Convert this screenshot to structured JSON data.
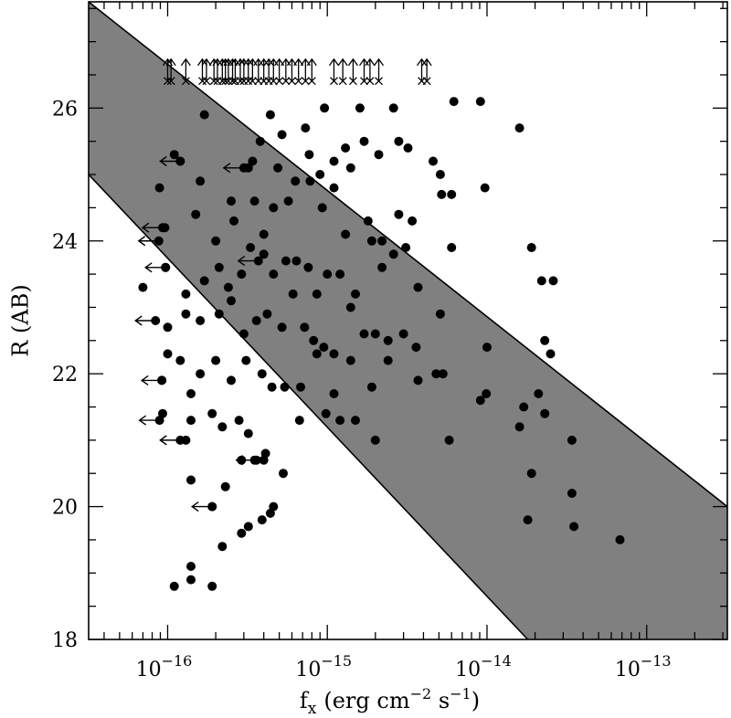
{
  "chart_data": {
    "type": "scatter",
    "title": "",
    "xlabel_main": "f",
    "xlabel_sub": "x",
    "xlabel_unit": "(erg cm",
    "xlabel_exp1": "−2",
    "xlabel_mid": " s",
    "xlabel_exp2": "−1",
    "xlabel_close": ")",
    "ylabel": "R (AB)",
    "xscale": "log",
    "xlim": [
      3.2e-17,
      3.2e-13
    ],
    "ylim": [
      18,
      27.6
    ],
    "x_ticks": [
      {
        "value": 1e-16,
        "base": "10",
        "exp": "−16"
      },
      {
        "value": 1e-15,
        "base": "10",
        "exp": "−15"
      },
      {
        "value": 1e-14,
        "base": "10",
        "exp": "−14"
      },
      {
        "value": 1e-13,
        "base": "10",
        "exp": "−13"
      }
    ],
    "y_ticks": [
      {
        "value": 18,
        "label": "18"
      },
      {
        "value": 20,
        "label": "20"
      },
      {
        "value": 22,
        "label": "22"
      },
      {
        "value": 24,
        "label": "24"
      },
      {
        "value": 26,
        "label": "26"
      }
    ],
    "band": {
      "upper_line": [
        [
          3.2e-17,
          27.6
        ],
        [
          3.2e-13,
          20.0
        ]
      ],
      "lower_line": [
        [
          3.2e-17,
          25.0
        ],
        [
          1.8e-14,
          18.0
        ]
      ],
      "fill_color": "#808080"
    },
    "detections": {
      "name": "",
      "marker": "filled-circle",
      "points": [
        [
          8.9e-17,
          24.8
        ],
        [
          1.7e-16,
          25.9
        ],
        [
          3.4e-16,
          25.2
        ],
        [
          4.4e-16,
          25.9
        ],
        [
          5.2e-16,
          25.6
        ],
        [
          7.3e-16,
          25.7
        ],
        [
          9.6e-16,
          26.0
        ],
        [
          1.3e-15,
          25.4
        ],
        [
          1.6e-15,
          26.0
        ],
        [
          2.6e-15,
          26.0
        ],
        [
          6.2e-15,
          26.1
        ],
        [
          9.1e-15,
          26.1
        ],
        [
          1.6e-14,
          25.7
        ],
        [
          1.1e-16,
          25.3
        ],
        [
          1.2e-16,
          25.2
        ],
        [
          1.6e-16,
          24.9
        ],
        [
          2.5e-16,
          24.6
        ],
        [
          3.2e-16,
          25.1
        ],
        [
          3.8e-16,
          25.5
        ],
        [
          4.9e-16,
          25.1
        ],
        [
          6.3e-16,
          24.9
        ],
        [
          7.7e-16,
          25.3
        ],
        [
          9e-16,
          25.0
        ],
        [
          1.1e-15,
          25.2
        ],
        [
          1.4e-15,
          25.1
        ],
        [
          1.7e-15,
          25.5
        ],
        [
          2.1e-15,
          25.3
        ],
        [
          2.8e-15,
          25.5
        ],
        [
          3.2e-15,
          25.4
        ],
        [
          4.6e-15,
          25.2
        ],
        [
          5.1e-15,
          25.0
        ],
        [
          9.7e-15,
          24.8
        ],
        [
          9.6e-17,
          24.2
        ],
        [
          1.5e-16,
          24.4
        ],
        [
          2e-16,
          24.0
        ],
        [
          2.6e-16,
          24.3
        ],
        [
          3.5e-16,
          24.6
        ],
        [
          4e-16,
          24.1
        ],
        [
          4.6e-16,
          24.5
        ],
        [
          5.7e-16,
          24.6
        ],
        [
          7.8e-16,
          24.9
        ],
        [
          9.3e-16,
          24.5
        ],
        [
          1.1e-15,
          24.8
        ],
        [
          1.3e-15,
          24.1
        ],
        [
          1.8e-15,
          24.3
        ],
        [
          2.2e-15,
          24.0
        ],
        [
          2.8e-15,
          24.4
        ],
        [
          3.4e-15,
          24.3
        ],
        [
          5.2e-15,
          24.7
        ],
        [
          6e-15,
          24.7
        ],
        [
          9.7e-17,
          23.6
        ],
        [
          1.3e-16,
          23.2
        ],
        [
          1.7e-16,
          23.4
        ],
        [
          2.1e-16,
          23.6
        ],
        [
          2.4e-16,
          23.3
        ],
        [
          2.9e-16,
          23.5
        ],
        [
          3.3e-16,
          23.9
        ],
        [
          4e-16,
          23.8
        ],
        [
          4.6e-16,
          23.5
        ],
        [
          5.5e-16,
          23.7
        ],
        [
          6.4e-16,
          23.7
        ],
        [
          7.6e-16,
          23.6
        ],
        [
          8.6e-16,
          23.2
        ],
        [
          1e-15,
          23.5
        ],
        [
          1.2e-15,
          23.5
        ],
        [
          1.5e-15,
          23.2
        ],
        [
          1.9e-15,
          24.0
        ],
        [
          2.2e-15,
          23.6
        ],
        [
          2.6e-15,
          23.8
        ],
        [
          3.1e-15,
          23.9
        ],
        [
          3.7e-15,
          23.3
        ],
        [
          6e-15,
          23.9
        ],
        [
          1.9e-14,
          23.9
        ],
        [
          2.2e-14,
          23.4
        ],
        [
          2.6e-14,
          23.4
        ],
        [
          7e-17,
          23.3
        ],
        [
          1e-16,
          22.7
        ],
        [
          1.3e-16,
          22.9
        ],
        [
          1.6e-16,
          22.8
        ],
        [
          2.1e-16,
          22.9
        ],
        [
          2.5e-16,
          23.1
        ],
        [
          3e-16,
          22.6
        ],
        [
          3.6e-16,
          22.8
        ],
        [
          4.2e-16,
          22.9
        ],
        [
          5.2e-16,
          22.7
        ],
        [
          6.1e-16,
          23.2
        ],
        [
          7.2e-16,
          22.7
        ],
        [
          8.2e-16,
          22.5
        ],
        [
          9.5e-16,
          22.4
        ],
        [
          1.1e-15,
          22.3
        ],
        [
          1.4e-15,
          23.0
        ],
        [
          1.7e-15,
          22.6
        ],
        [
          2e-15,
          22.6
        ],
        [
          2.4e-15,
          22.5
        ],
        [
          3e-15,
          22.6
        ],
        [
          3.6e-15,
          22.4
        ],
        [
          5.1e-15,
          22.9
        ],
        [
          1e-14,
          22.4
        ],
        [
          2.3e-14,
          22.5
        ],
        [
          2.5e-14,
          22.3
        ],
        [
          9.2e-17,
          21.9
        ],
        [
          1e-16,
          22.3
        ],
        [
          1.2e-16,
          22.2
        ],
        [
          1.4e-16,
          21.7
        ],
        [
          1.6e-16,
          22.0
        ],
        [
          2e-16,
          22.2
        ],
        [
          2.5e-16,
          21.9
        ],
        [
          3.1e-16,
          22.2
        ],
        [
          3.9e-16,
          22.0
        ],
        [
          4.5e-16,
          21.8
        ],
        [
          5.4e-16,
          21.8
        ],
        [
          6.8e-16,
          21.8
        ],
        [
          8.6e-16,
          22.3
        ],
        [
          1.1e-15,
          21.7
        ],
        [
          1.4e-15,
          22.2
        ],
        [
          1.9e-15,
          21.8
        ],
        [
          2.4e-15,
          22.2
        ],
        [
          3.7e-15,
          21.9
        ],
        [
          4.8e-15,
          22.0
        ],
        [
          5.3e-15,
          22.0
        ],
        [
          9.1e-15,
          21.6
        ],
        [
          9.9e-15,
          21.7
        ],
        [
          1.7e-14,
          21.5
        ],
        [
          9.3e-17,
          21.4
        ],
        [
          1.3e-16,
          21.0
        ],
        [
          1.4e-16,
          21.3
        ],
        [
          1.9e-16,
          21.4
        ],
        [
          2.2e-16,
          21.2
        ],
        [
          2.8e-16,
          21.3
        ],
        [
          3.2e-16,
          21.1
        ],
        [
          4.1e-16,
          20.8
        ],
        [
          6.7e-16,
          21.3
        ],
        [
          9.8e-16,
          21.4
        ],
        [
          1.2e-15,
          21.3
        ],
        [
          1.5e-15,
          21.3
        ],
        [
          2e-15,
          21.0
        ],
        [
          5.8e-15,
          21.0
        ],
        [
          1.6e-14,
          21.2
        ],
        [
          2.1e-14,
          21.7
        ],
        [
          2.3e-14,
          21.4
        ],
        [
          3.4e-14,
          21.0
        ],
        [
          1.4e-16,
          20.4
        ],
        [
          1.9e-16,
          20.0
        ],
        [
          2.3e-16,
          20.3
        ],
        [
          2.9e-16,
          20.7
        ],
        [
          3.5e-16,
          20.7
        ],
        [
          4e-16,
          20.7
        ],
        [
          4.6e-16,
          20.0
        ],
        [
          5.3e-16,
          20.5
        ],
        [
          1.9e-14,
          20.5
        ],
        [
          3.4e-14,
          20.2
        ],
        [
          1.4e-16,
          19.1
        ],
        [
          1.9e-16,
          18.8
        ],
        [
          2.2e-16,
          19.4
        ],
        [
          2.9e-16,
          19.6
        ],
        [
          3.2e-16,
          19.7
        ],
        [
          3.9e-16,
          19.8
        ],
        [
          4.4e-16,
          19.9
        ],
        [
          1.8e-14,
          19.8
        ],
        [
          3.5e-14,
          19.7
        ],
        [
          6.8e-14,
          19.5
        ],
        [
          1.1e-16,
          18.8
        ],
        [
          1.4e-16,
          18.9
        ]
      ]
    },
    "upper_limits_fx": {
      "name": "",
      "marker": "filled-circle-with-left-arrow",
      "points": [
        [
          1.2e-16,
          25.2
        ],
        [
          3e-16,
          25.1
        ],
        [
          9.3e-17,
          24.2
        ],
        [
          8.8e-17,
          24.0
        ],
        [
          3.7e-16,
          23.7
        ],
        [
          9.7e-17,
          23.6
        ],
        [
          8.4e-17,
          22.8
        ],
        [
          9.2e-17,
          21.9
        ],
        [
          8.9e-17,
          21.3
        ],
        [
          1.2e-16,
          21.0
        ],
        [
          3.6e-16,
          20.7
        ],
        [
          1.9e-16,
          20.0
        ]
      ]
    },
    "lower_limits_R": {
      "name": "",
      "marker": "cross-with-up-arrow",
      "R_value": 26.6,
      "fx": [
        1e-16,
        1.05e-16,
        1.3e-16,
        1.65e-16,
        1.75e-16,
        1.95e-16,
        2.05e-16,
        2.2e-16,
        2.3e-16,
        2.4e-16,
        2.55e-16,
        2.65e-16,
        2.85e-16,
        3e-16,
        3.2e-16,
        3.4e-16,
        3.7e-16,
        4e-16,
        4.3e-16,
        4.6e-16,
        5e-16,
        5.5e-16,
        6e-16,
        6.6e-16,
        7.3e-16,
        8e-16,
        1.1e-15,
        1.25e-15,
        1.45e-15,
        1.7e-15,
        1.85e-15,
        2.1e-15,
        3.9e-15,
        4.2e-15
      ]
    }
  }
}
